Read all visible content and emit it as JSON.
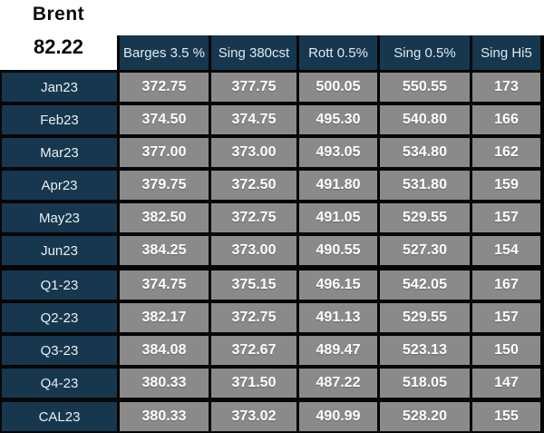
{
  "corner": {
    "instrument": "Brent",
    "price": "82.22"
  },
  "table": {
    "columns": [
      "Barges 3.5 %",
      "Sing 380cst",
      "Rott 0.5%",
      "Sing 0.5%",
      "Sing Hi5"
    ],
    "rows": [
      {
        "label": "Jan23",
        "values": [
          "372.75",
          "377.75",
          "500.05",
          "550.55",
          "173"
        ]
      },
      {
        "label": "Feb23",
        "values": [
          "374.50",
          "374.75",
          "495.30",
          "540.80",
          "166"
        ]
      },
      {
        "label": "Mar23",
        "values": [
          "377.00",
          "373.00",
          "493.05",
          "534.80",
          "162"
        ]
      },
      {
        "label": "Apr23",
        "values": [
          "379.75",
          "372.50",
          "491.80",
          "531.80",
          "159"
        ]
      },
      {
        "label": "May23",
        "values": [
          "382.50",
          "372.75",
          "491.05",
          "529.55",
          "157"
        ]
      },
      {
        "label": "Jun23",
        "values": [
          "384.25",
          "373.00",
          "490.55",
          "527.30",
          "154"
        ]
      },
      {
        "label": "Q1-23",
        "values": [
          "374.75",
          "375.15",
          "496.15",
          "542.05",
          "167"
        ]
      },
      {
        "label": "Q2-23",
        "values": [
          "382.17",
          "372.75",
          "491.13",
          "529.55",
          "157"
        ]
      },
      {
        "label": "Q3-23",
        "values": [
          "384.08",
          "372.67",
          "489.47",
          "523.13",
          "150"
        ]
      },
      {
        "label": "Q4-23",
        "values": [
          "380.33",
          "371.50",
          "487.22",
          "518.05",
          "147"
        ]
      },
      {
        "label": "CAL23",
        "values": [
          "380.33",
          "373.02",
          "490.99",
          "528.20",
          "155"
        ]
      }
    ]
  },
  "colors": {
    "header_navy": "#16374e",
    "cell_gray": "#8a8a8a",
    "grid_black": "#060606",
    "text_white": "#ffffff"
  }
}
